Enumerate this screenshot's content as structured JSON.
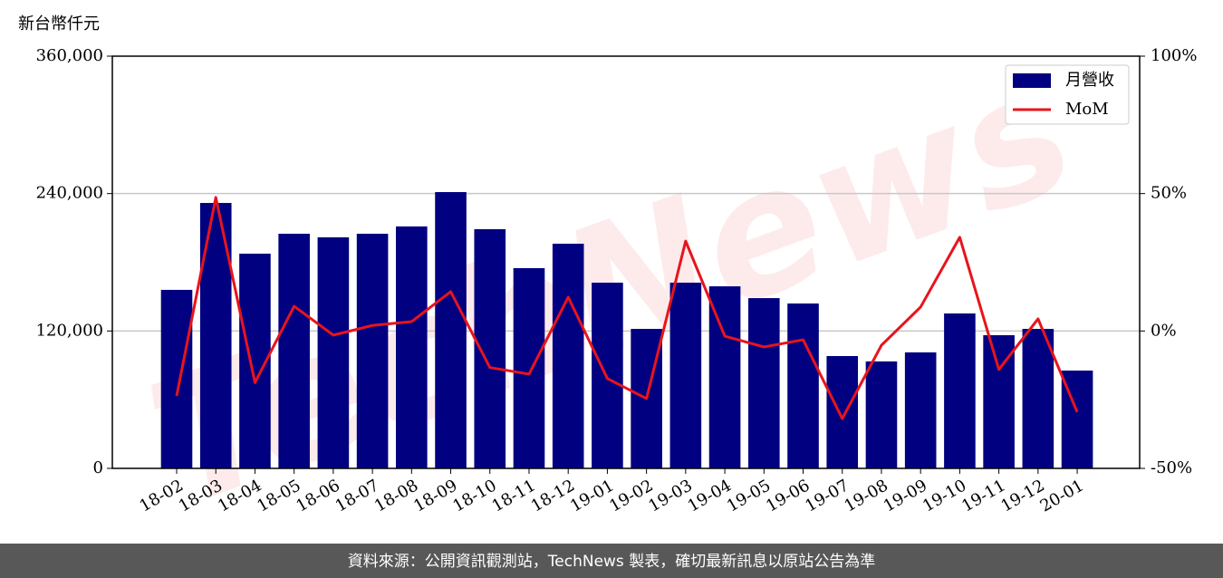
{
  "chart_data": {
    "type": "bar",
    "y_label": "新台幣仟元",
    "watermark": "TechNews",
    "source": "資料來源：公開資訊觀測站，TechNews 製表，確切最新訊息以原站公告為準",
    "categories": [
      "18-02",
      "18-03",
      "18-04",
      "18-05",
      "18-06",
      "18-07",
      "18-08",
      "18-09",
      "18-10",
      "18-11",
      "18-12",
      "19-01",
      "19-02",
      "19-03",
      "19-04",
      "19-05",
      "19-06",
      "19-07",
      "19-08",
      "19-09",
      "19-10",
      "19-11",
      "19-12",
      "20-01"
    ],
    "series": [
      {
        "name": "月營收",
        "type": "bar",
        "color": "#000080",
        "values": [
          155900,
          231800,
          187500,
          204900,
          201800,
          204900,
          211300,
          241300,
          208900,
          174900,
          196200,
          162200,
          121800,
          162200,
          159000,
          148700,
          144000,
          98100,
          93400,
          101300,
          135300,
          116300,
          121800,
          85400
        ]
      },
      {
        "name": "MoM",
        "type": "line",
        "color": "#e8141c",
        "axis": "y2",
        "values": [
          -23.6,
          48.6,
          -18.8,
          9,
          -1.5,
          2,
          3.4,
          14.3,
          -13.3,
          -15.7,
          12.3,
          -17.3,
          -24.6,
          32.7,
          -1.9,
          -5.8,
          -3.2,
          -31.9,
          -5.2,
          8.7,
          34.1,
          -14,
          4.4,
          -29.5
        ]
      }
    ],
    "ylim": [
      0,
      360000
    ],
    "yticks": [
      0,
      {
        "value": 120000,
        "label": "120,000"
      },
      {
        "value": 240000,
        "label": "240,000"
      },
      {
        "value": 360000,
        "label": "360,000"
      }
    ],
    "y2lim": [
      -50,
      100
    ],
    "y2ticks": [
      {
        "value": -50,
        "label": "-50%"
      },
      {
        "value": 0,
        "label": "0%"
      },
      {
        "value": 50,
        "label": "50%"
      },
      {
        "value": 100,
        "label": "100%"
      }
    ],
    "grid": true,
    "legend": "upper right"
  }
}
